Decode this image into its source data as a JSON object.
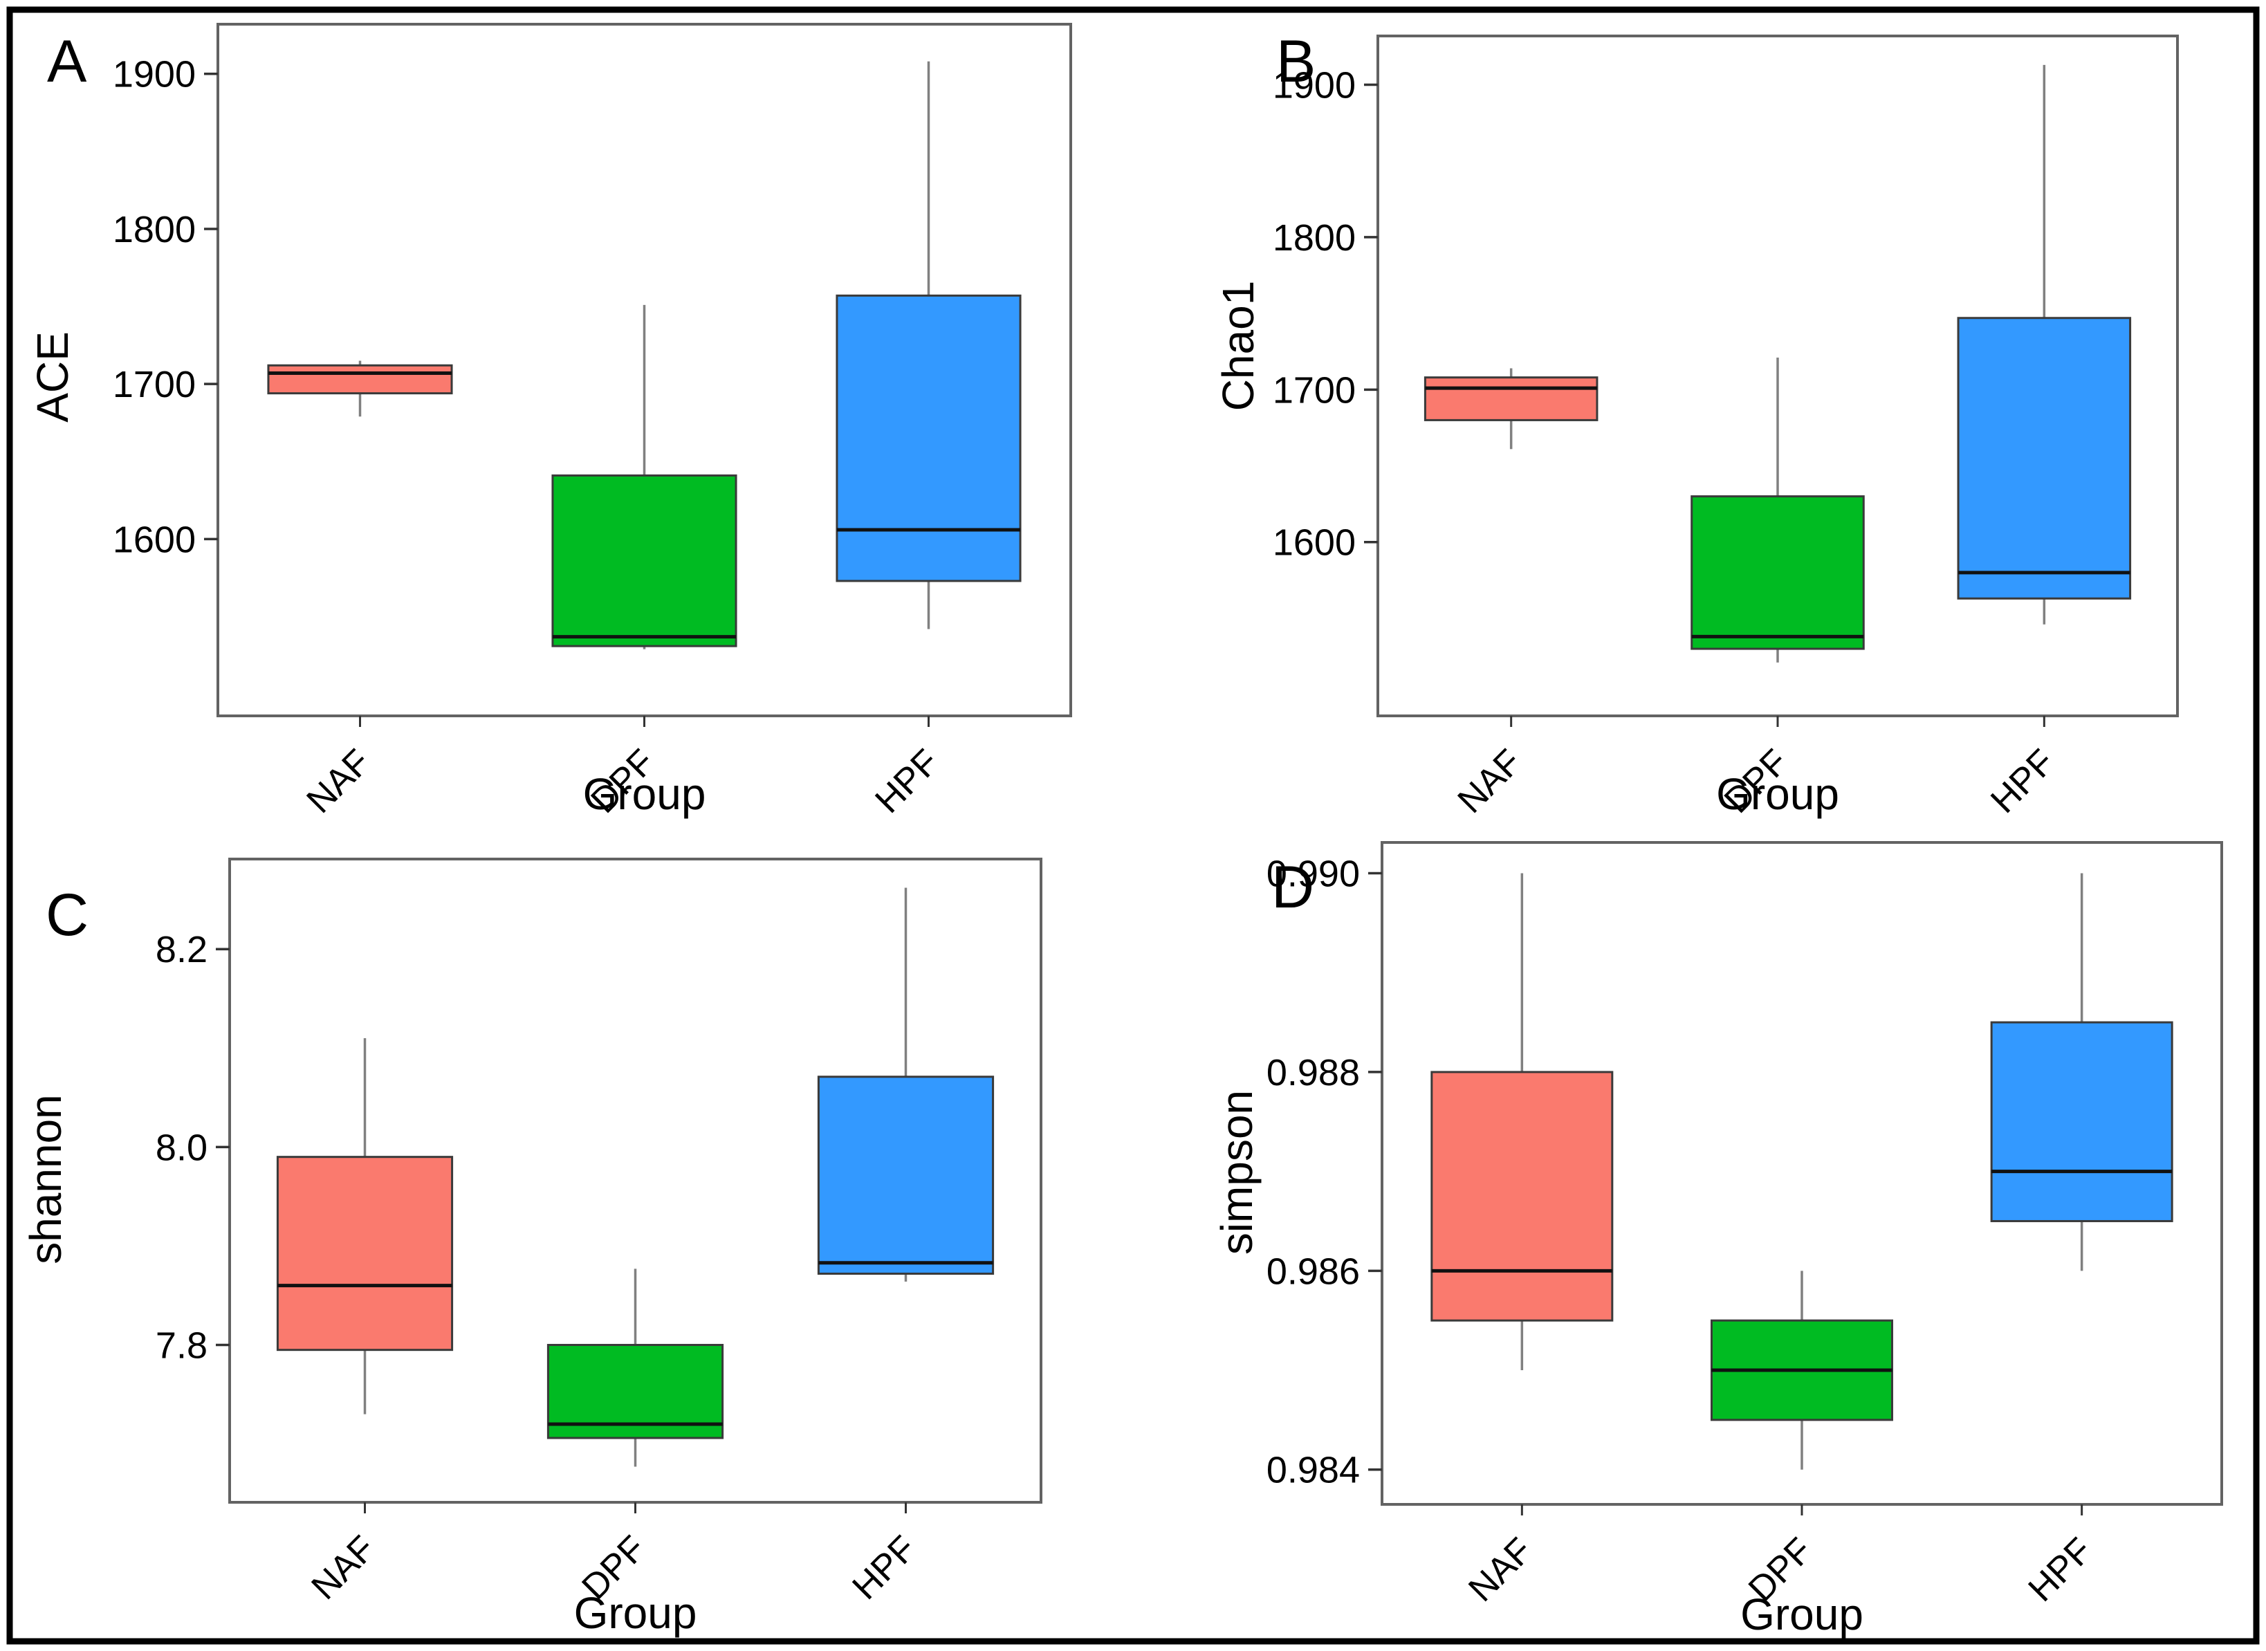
{
  "figure": {
    "background": "#ffffff",
    "outer_border_color": "#000000",
    "panel_border_color": "#636363",
    "text_color": "#000000",
    "tick_color": "#333333",
    "median_color": "#111111",
    "whisker_color": "#808080",
    "box_border_color": "#3a3a3a"
  },
  "palette": {
    "NAF": "#FA7A6E",
    "DPF": "#00BB22",
    "HPF": "#3399FF"
  },
  "chart_data": [
    {
      "panel_letter": "A",
      "type": "box",
      "title": "",
      "xlabel": "Group",
      "ylabel": "ACE",
      "categories": [
        "NAF",
        "DPF",
        "HPF"
      ],
      "ylim": [
        1486,
        1932
      ],
      "yticks": [
        1600,
        1700,
        1800,
        1900
      ],
      "ytick_labels": [
        "1600",
        "1700",
        "1800",
        "1900"
      ],
      "grid": false,
      "legend": "none",
      "series": [
        {
          "group": "NAF",
          "whislo": 1679,
          "q1": 1694,
          "med": 1707,
          "q3": 1712,
          "whishi": 1715
        },
        {
          "group": "DPF",
          "whislo": 1529,
          "q1": 1531,
          "med": 1537,
          "q3": 1641,
          "whishi": 1751
        },
        {
          "group": "HPF",
          "whislo": 1542,
          "q1": 1573,
          "med": 1606,
          "q3": 1757,
          "whishi": 1908
        }
      ]
    },
    {
      "panel_letter": "B",
      "type": "box",
      "title": "",
      "xlabel": "Group",
      "ylabel": "Chao1",
      "categories": [
        "NAF",
        "DPF",
        "HPF"
      ],
      "ylim": [
        1486,
        1932
      ],
      "yticks": [
        1600,
        1700,
        1800,
        1900
      ],
      "ytick_labels": [
        "1600",
        "1700",
        "1800",
        "1900"
      ],
      "grid": false,
      "legend": "none",
      "series": [
        {
          "group": "NAF",
          "whislo": 1661,
          "q1": 1680,
          "med": 1701,
          "q3": 1708,
          "whishi": 1714
        },
        {
          "group": "DPF",
          "whislo": 1521,
          "q1": 1530,
          "med": 1538,
          "q3": 1630,
          "whishi": 1721
        },
        {
          "group": "HPF",
          "whislo": 1546,
          "q1": 1563,
          "med": 1580,
          "q3": 1747,
          "whishi": 1913
        }
      ]
    },
    {
      "panel_letter": "C",
      "type": "box",
      "title": "",
      "xlabel": "Group",
      "ylabel": "shannon",
      "categories": [
        "NAF",
        "DPF",
        "HPF"
      ],
      "ylim": [
        7.641,
        8.291
      ],
      "yticks": [
        7.8,
        8.0,
        8.2
      ],
      "ytick_labels": [
        "7.8",
        "8.0",
        "8.2"
      ],
      "grid": false,
      "legend": "none",
      "series": [
        {
          "group": "NAF",
          "whislo": 7.73,
          "q1": 7.795,
          "med": 7.86,
          "q3": 7.99,
          "whishi": 8.11
        },
        {
          "group": "DPF",
          "whislo": 7.677,
          "q1": 7.706,
          "med": 7.72,
          "q3": 7.8,
          "whishi": 7.877
        },
        {
          "group": "HPF",
          "whislo": 7.864,
          "q1": 7.872,
          "med": 7.883,
          "q3": 8.071,
          "whishi": 8.262
        }
      ]
    },
    {
      "panel_letter": "D",
      "type": "box",
      "title": "",
      "xlabel": "Group",
      "ylabel": "simpson",
      "categories": [
        "NAF",
        "DPF",
        "HPF"
      ],
      "ylim": [
        0.98365,
        0.99031
      ],
      "yticks": [
        0.984,
        0.986,
        0.988,
        0.99
      ],
      "ytick_labels": [
        "0.984",
        "0.986",
        "0.988",
        "0.990"
      ],
      "grid": false,
      "legend": "none",
      "series": [
        {
          "group": "NAF",
          "whislo": 0.985,
          "q1": 0.9855,
          "med": 0.986,
          "q3": 0.988,
          "whishi": 0.99
        },
        {
          "group": "DPF",
          "whislo": 0.984,
          "q1": 0.9845,
          "med": 0.985,
          "q3": 0.9855,
          "whishi": 0.986
        },
        {
          "group": "HPF",
          "whislo": 0.986,
          "q1": 0.9865,
          "med": 0.987,
          "q3": 0.9885,
          "whishi": 0.99
        }
      ]
    }
  ]
}
